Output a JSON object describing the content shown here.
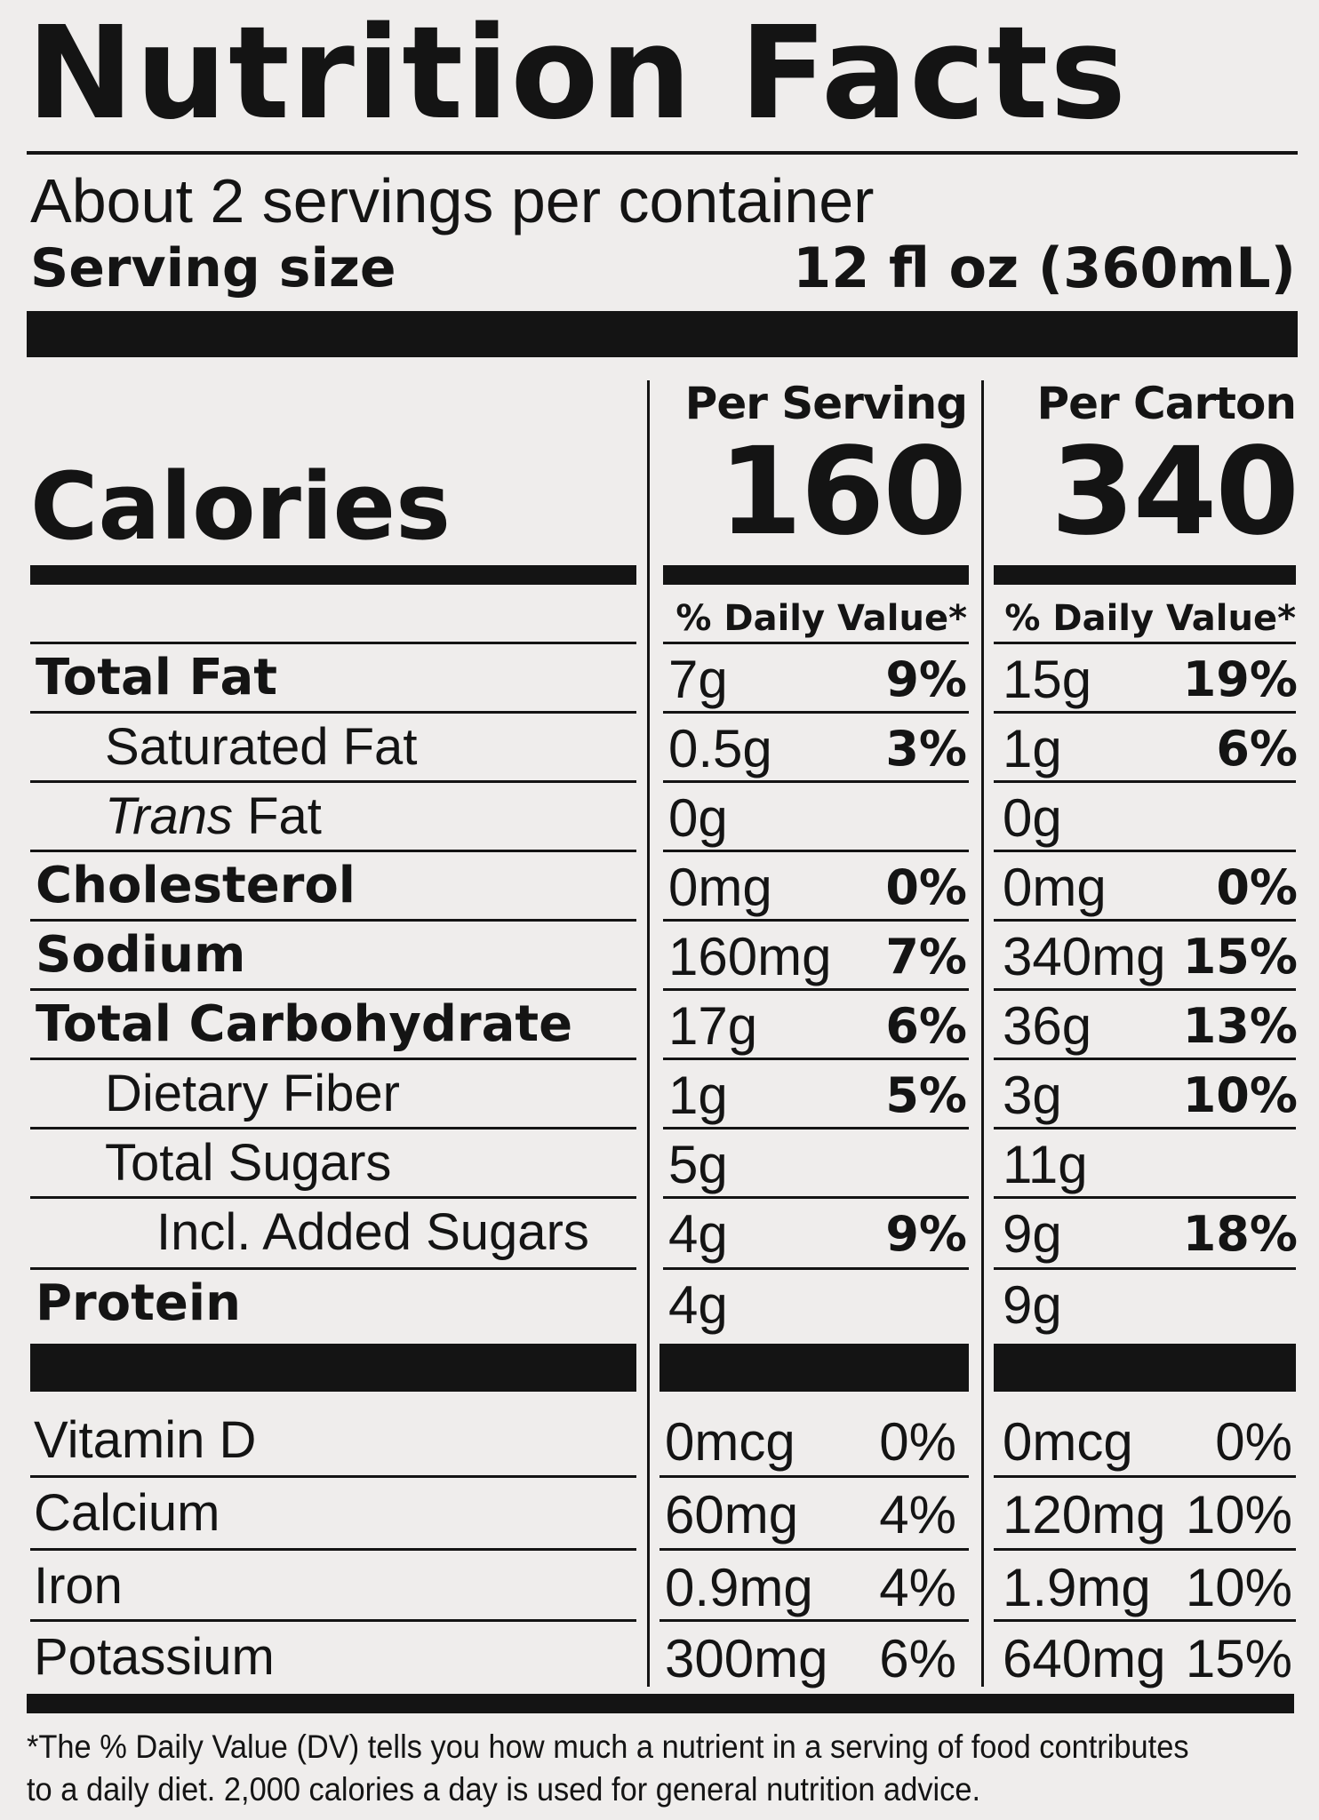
{
  "header": {
    "title": "Nutrition Facts",
    "servings_per_container": "About 2 servings per container",
    "serving_size_label": "Serving size",
    "serving_size_value": "12 fl oz (360mL)"
  },
  "columns": {
    "per_serving": "Per Serving",
    "per_carton": "Per Carton",
    "daily_value_header": "% Daily Value*"
  },
  "calories": {
    "label": "Calories",
    "per_serving": "160",
    "per_carton": "340"
  },
  "nutrients": [
    {
      "name": "Total Fat",
      "serving_amount": "7g",
      "serving_dv": "9%",
      "carton_amount": "15g",
      "carton_dv": "19%"
    },
    {
      "name": "Saturated Fat",
      "serving_amount": "0.5g",
      "serving_dv": "3%",
      "carton_amount": "1g",
      "carton_dv": "6%"
    },
    {
      "name_italic": "Trans",
      "name_rest": " Fat",
      "serving_amount": "0g",
      "serving_dv": "",
      "carton_amount": "0g",
      "carton_dv": ""
    },
    {
      "name": "Cholesterol",
      "serving_amount": "0mg",
      "serving_dv": "0%",
      "carton_amount": "0mg",
      "carton_dv": "0%"
    },
    {
      "name": "Sodium",
      "serving_amount": "160mg",
      "serving_dv": "7%",
      "carton_amount": "340mg",
      "carton_dv": "15%"
    },
    {
      "name": "Total Carbohydrate",
      "serving_amount": "17g",
      "serving_dv": "6%",
      "carton_amount": "36g",
      "carton_dv": "13%"
    },
    {
      "name": "Dietary Fiber",
      "serving_amount": "1g",
      "serving_dv": "5%",
      "carton_amount": "3g",
      "carton_dv": "10%"
    },
    {
      "name": "Total Sugars",
      "serving_amount": "5g",
      "serving_dv": "",
      "carton_amount": "11g",
      "carton_dv": ""
    },
    {
      "name": "Incl. Added Sugars",
      "serving_amount": "4g",
      "serving_dv": "9%",
      "carton_amount": "9g",
      "carton_dv": "18%"
    },
    {
      "name": "Protein",
      "serving_amount": "4g",
      "serving_dv": "",
      "carton_amount": "9g",
      "carton_dv": ""
    }
  ],
  "vitamins": [
    {
      "name": "Vitamin D",
      "serving_amount": "0mcg",
      "serving_dv": "0%",
      "carton_amount": "0mcg",
      "carton_dv": "0%"
    },
    {
      "name": "Calcium",
      "serving_amount": "60mg",
      "serving_dv": "4%",
      "carton_amount": "120mg",
      "carton_dv": "10%"
    },
    {
      "name": "Iron",
      "serving_amount": "0.9mg",
      "serving_dv": "4%",
      "carton_amount": "1.9mg",
      "carton_dv": "10%"
    },
    {
      "name": "Potassium",
      "serving_amount": "300mg",
      "serving_dv": "6%",
      "carton_amount": "640mg",
      "carton_dv": "15%"
    }
  ],
  "footnote": "*The % Daily Value (DV) tells you how much a nutrient in a serving of food contributes to a daily diet. 2,000 calories a day is used for general nutrition advice."
}
